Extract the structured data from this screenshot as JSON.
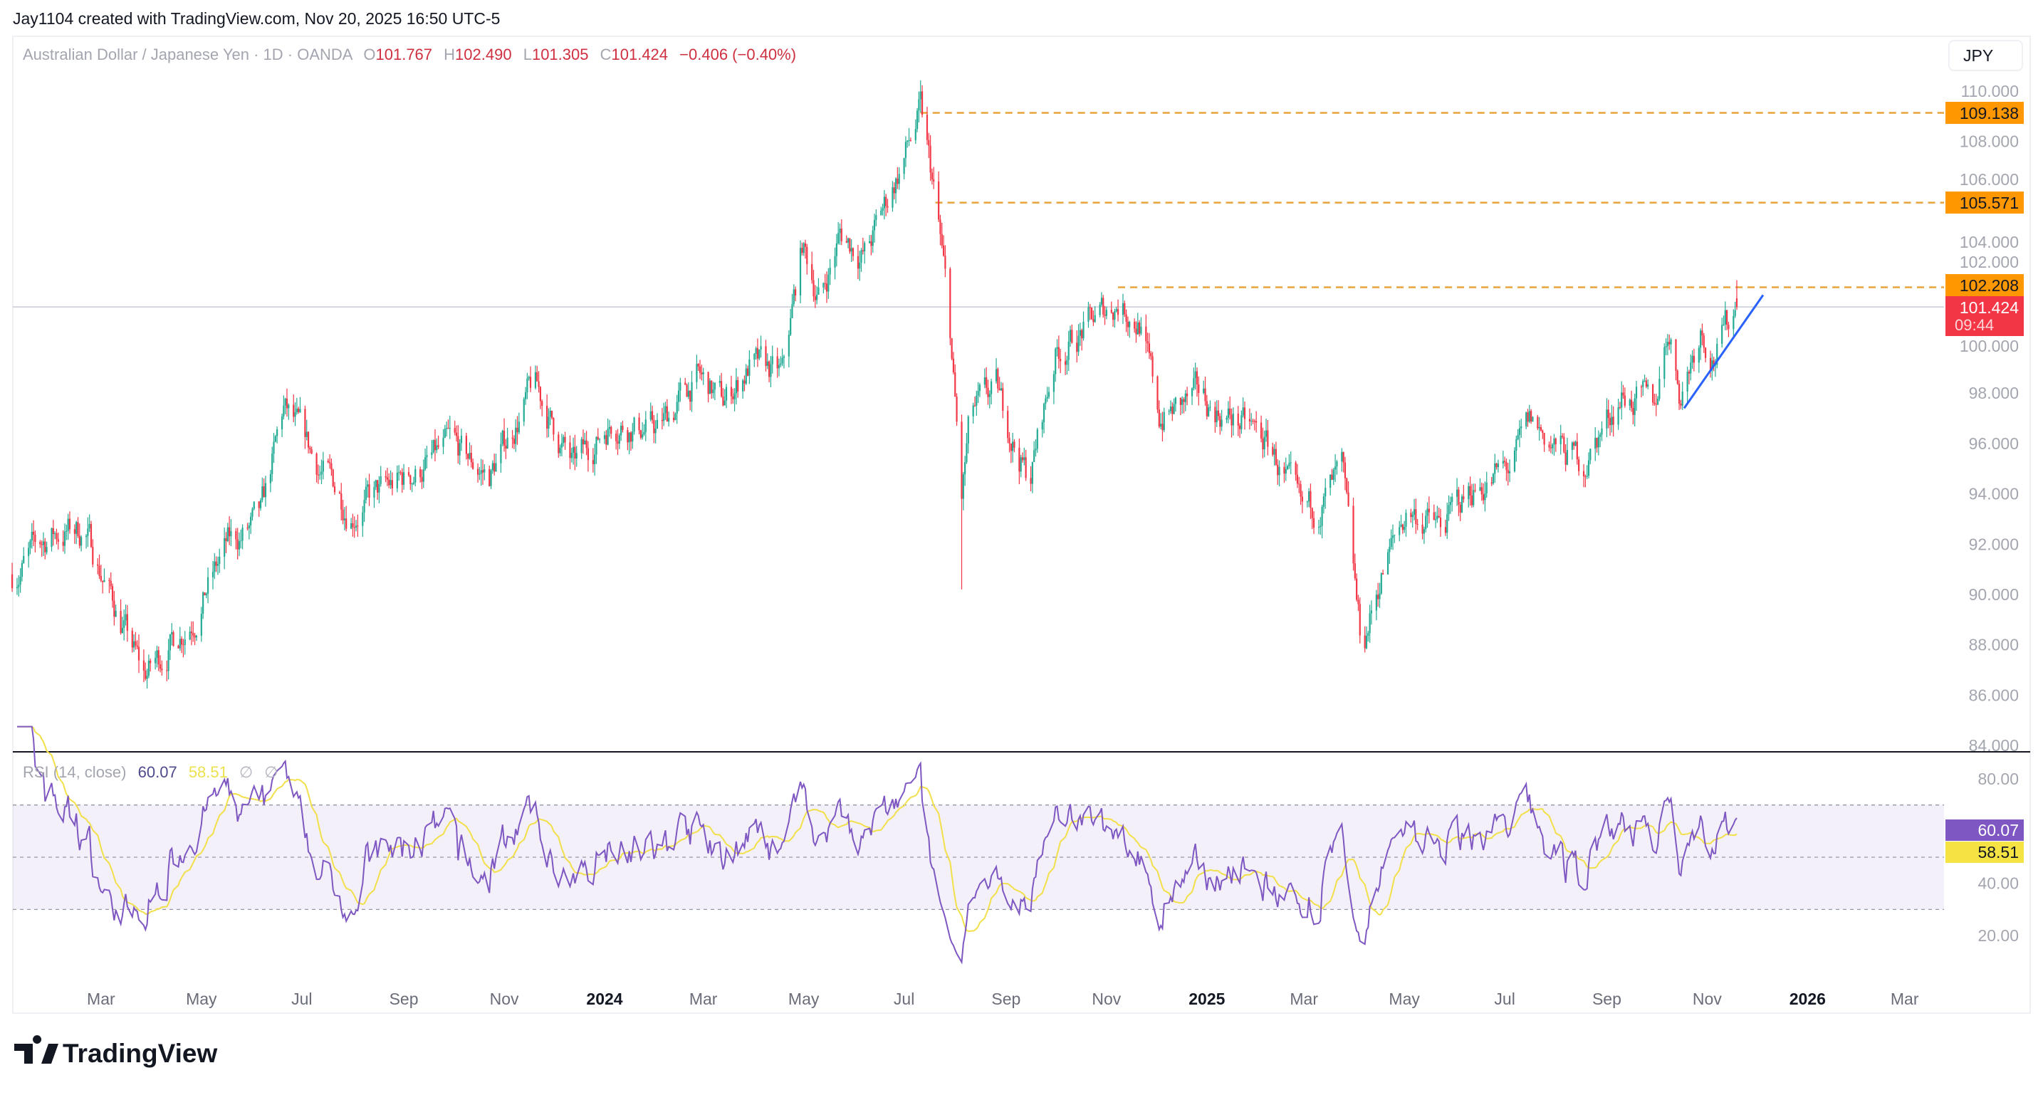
{
  "header": {
    "credit": "Jay1104 created with TradingView.com, Nov 20, 2025 16:50 UTC-5"
  },
  "legend": {
    "symbol": "Australian Dollar / Japanese Yen · 1D · OANDA",
    "o_label": "O",
    "o": "101.767",
    "h_label": "H",
    "h": "102.490",
    "l_label": "L",
    "l": "101.305",
    "c_label": "C",
    "c": "101.424",
    "change": "−0.406 (−0.40%)"
  },
  "currency_button": "JPY",
  "rsi_legend": {
    "name": "RSI (14, close)",
    "rsi": "60.07",
    "ma": "58.51",
    "n1": "∅",
    "n2": "∅"
  },
  "badges": {
    "level1": "109.138",
    "level2": "105.571",
    "level3": "102.208",
    "last_price": "101.424",
    "countdown": "09:44",
    "rsi": "60.07",
    "rsi_ma": "58.51"
  },
  "footer": {
    "brand": "TradingView"
  },
  "colors": {
    "up": "#22ab94",
    "down": "#f23645",
    "level": "#f0a020",
    "trend": "#2962ff",
    "rsi": "#7e57c2",
    "rsi_ma": "#f2e04a"
  },
  "chart_data": {
    "type": "candlestick",
    "title": "Australian Dollar / Japanese Yen · 1D · OANDA",
    "x_unit": "days since 2023-01-01",
    "price_keypoints": [
      [
        5,
        90.8
      ],
      [
        29,
        92.4
      ],
      [
        49,
        92.6
      ],
      [
        85,
        86.7
      ],
      [
        116,
        89.3
      ],
      [
        136,
        91.9
      ],
      [
        156,
        92.9
      ],
      [
        170,
        97.3
      ],
      [
        192,
        95.0
      ],
      [
        211,
        93.4
      ],
      [
        235,
        94.2
      ],
      [
        271,
        95.8
      ],
      [
        295,
        94.7
      ],
      [
        322,
        98.3
      ],
      [
        346,
        95.0
      ],
      [
        370,
        97.0
      ],
      [
        397,
        96.5
      ],
      [
        421,
        98.6
      ],
      [
        437,
        97.6
      ],
      [
        453,
        99.1
      ],
      [
        473,
        98.6
      ],
      [
        485,
        103.8
      ],
      [
        496,
        101.7
      ],
      [
        508,
        104.3
      ],
      [
        524,
        103.5
      ],
      [
        557,
        109.1
      ],
      [
        566,
        105.6
      ],
      [
        574,
        101.2
      ],
      [
        582,
        93.7
      ],
      [
        587,
        97.0
      ],
      [
        603,
        98.0
      ],
      [
        623,
        94.5
      ],
      [
        639,
        99.6
      ],
      [
        655,
        100.4
      ],
      [
        677,
        101.7
      ],
      [
        690,
        100.9
      ],
      [
        702,
        97.0
      ],
      [
        726,
        97.8
      ],
      [
        758,
        96.5
      ],
      [
        770,
        95.8
      ],
      [
        789,
        92.9
      ],
      [
        813,
        94.7
      ],
      [
        825,
        87.7
      ],
      [
        837,
        90.8
      ],
      [
        853,
        93.4
      ],
      [
        873,
        92.6
      ],
      [
        892,
        94.2
      ],
      [
        916,
        95.0
      ],
      [
        928,
        96.8
      ],
      [
        944,
        95.8
      ],
      [
        960,
        95.2
      ],
      [
        983,
        98.0
      ],
      [
        1003,
        97.3
      ],
      [
        1011,
        100.7
      ],
      [
        1019,
        98.0
      ],
      [
        1031,
        100.7
      ],
      [
        1039,
        99.6
      ],
      [
        1053,
        101.424
      ]
    ],
    "extreme_wicks": [
      [
        582,
        90.2
      ],
      [
        825,
        86.1
      ],
      [
        557,
        109.14
      ]
    ],
    "horizontal_levels": [
      {
        "price": 109.138,
        "from_day": 557
      },
      {
        "price": 105.571,
        "from_day": 566
      },
      {
        "price": 102.208,
        "from_day": 677
      }
    ],
    "trendline": [
      [
        1021,
        97.4
      ],
      [
        1069,
        101.9
      ]
    ],
    "last_price": 101.424,
    "y_ticks": [
      "110.000",
      "108.000",
      "106.000",
      "104.000",
      "102.000",
      "100.000",
      "98.000",
      "96.000",
      "94.000",
      "92.000",
      "90.000",
      "88.000",
      "86.000",
      "84.000"
    ],
    "ylim": [
      84,
      110
    ],
    "x_ticks": [
      [
        "Mar",
        59
      ],
      [
        "May",
        120
      ],
      [
        "Jul",
        181
      ],
      [
        "Sep",
        243
      ],
      [
        "Nov",
        304
      ],
      [
        "2024",
        365
      ],
      [
        "Mar",
        425
      ],
      [
        "May",
        486
      ],
      [
        "Jul",
        547
      ],
      [
        "Sep",
        609
      ],
      [
        "Nov",
        670
      ],
      [
        "2025",
        731
      ],
      [
        "Mar",
        790
      ],
      [
        "May",
        851
      ],
      [
        "Jul",
        912
      ],
      [
        "Sep",
        974
      ],
      [
        "Nov",
        1035
      ],
      [
        "2026",
        1096
      ],
      [
        "Mar",
        1155
      ]
    ],
    "rsi": {
      "period": 14,
      "ma_period": 14,
      "ylim": [
        10,
        85
      ],
      "y_ticks": [
        "80.00",
        "40.00",
        "20.00"
      ],
      "bands": [
        70,
        50,
        30
      ]
    }
  }
}
